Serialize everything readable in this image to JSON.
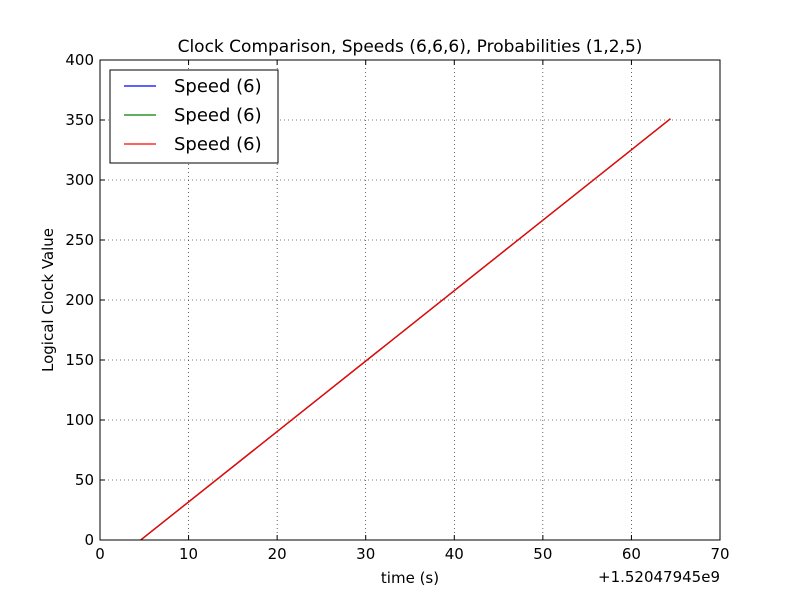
{
  "chart_data": {
    "type": "line",
    "title": "Clock Comparison, Speeds (6,6,6), Probabilities (1,2,5)",
    "xlabel": "time (s)",
    "ylabel": "Logical Clock Value",
    "x_offset_label": "+1.52047945e9",
    "xlim": [
      0,
      70
    ],
    "ylim": [
      0,
      400
    ],
    "x_ticks": [
      "0",
      "10",
      "20",
      "30",
      "40",
      "50",
      "60",
      "70"
    ],
    "y_ticks": [
      "0",
      "50",
      "100",
      "150",
      "200",
      "250",
      "300",
      "350",
      "400"
    ],
    "grid": true,
    "legend_position": "upper-left",
    "series": [
      {
        "name": "Speed (6)",
        "color": "#0000ff",
        "x": [
          4.6,
          64.4
        ],
        "y": [
          0,
          351
        ]
      },
      {
        "name": "Speed (6)",
        "color": "#008000",
        "x": [
          4.6,
          64.4
        ],
        "y": [
          0,
          351
        ]
      },
      {
        "name": "Speed (6)",
        "color": "#ff0000",
        "x": [
          4.6,
          64.4
        ],
        "y": [
          0,
          351
        ]
      }
    ]
  }
}
